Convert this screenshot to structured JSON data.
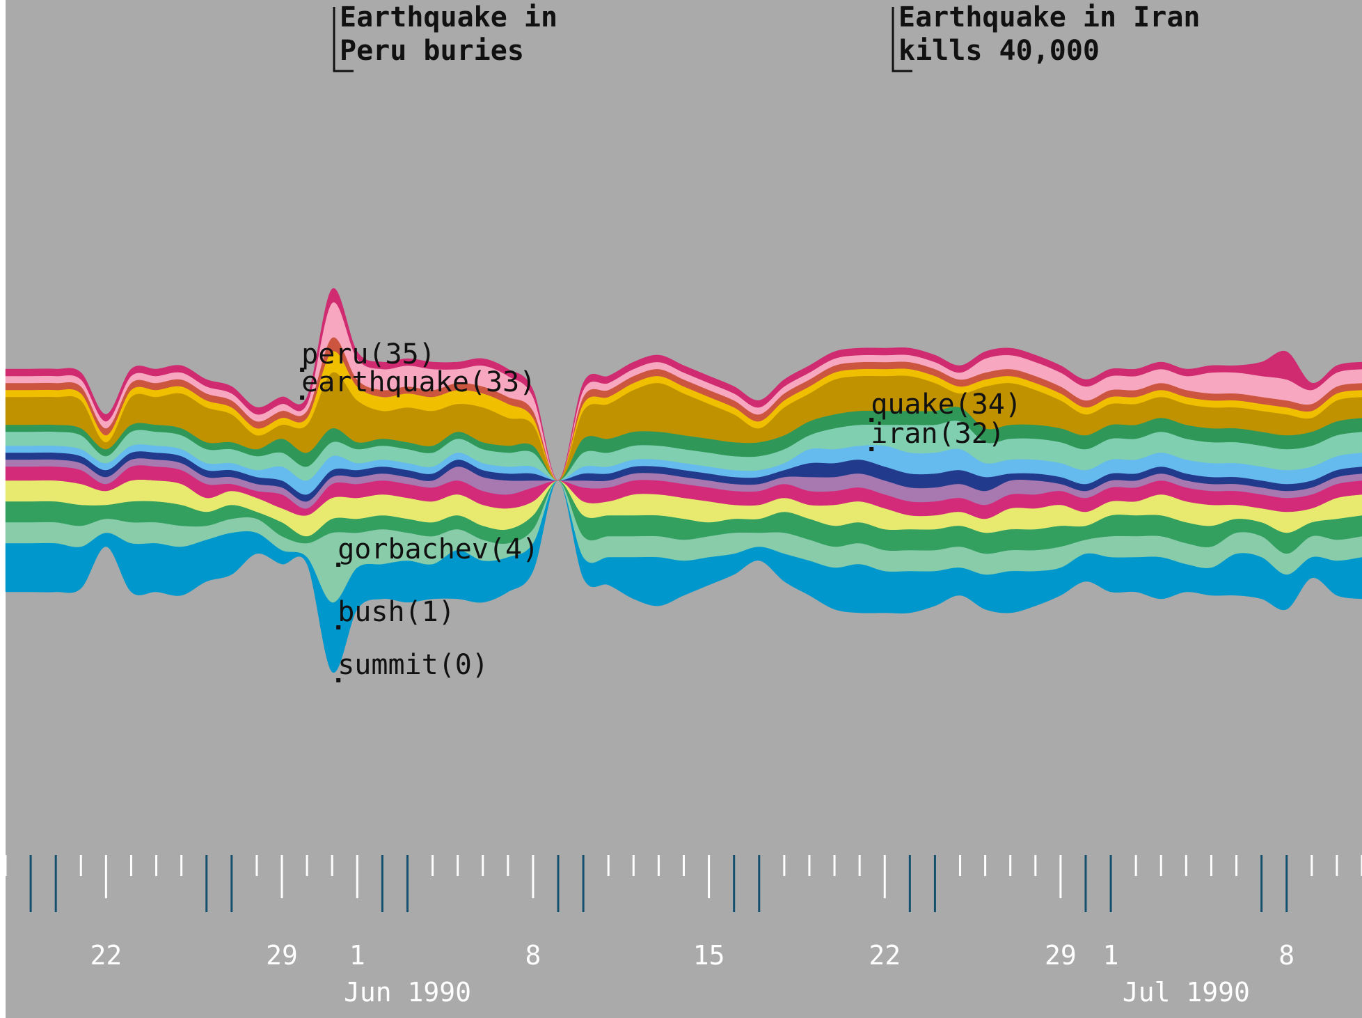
{
  "chart_data": {
    "type": "area",
    "subtype": "streamgraph",
    "title": "",
    "xlabel": "",
    "ylabel": "",
    "background": "#aaaaaa",
    "x": [
      "1990-05-18",
      "1990-05-19",
      "1990-05-20",
      "1990-05-21",
      "1990-05-22",
      "1990-05-23",
      "1990-05-24",
      "1990-05-25",
      "1990-05-26",
      "1990-05-27",
      "1990-05-28",
      "1990-05-29",
      "1990-05-30",
      "1990-05-31",
      "1990-06-01",
      "1990-06-02",
      "1990-06-03",
      "1990-06-04",
      "1990-06-05",
      "1990-06-06",
      "1990-06-07",
      "1990-06-08",
      "1990-06-09",
      "1990-06-10",
      "1990-06-11",
      "1990-06-12",
      "1990-06-13",
      "1990-06-14",
      "1990-06-15",
      "1990-06-16",
      "1990-06-17",
      "1990-06-18",
      "1990-06-19",
      "1990-06-20",
      "1990-06-21",
      "1990-06-22",
      "1990-06-23",
      "1990-06-24",
      "1990-06-25",
      "1990-06-26",
      "1990-06-27",
      "1990-06-28",
      "1990-06-29",
      "1990-06-30",
      "1990-07-01",
      "1990-07-02",
      "1990-07-03",
      "1990-07-04",
      "1990-07-05",
      "1990-07-06",
      "1990-07-07",
      "1990-07-08",
      "1990-07-09",
      "1990-07-10",
      "1990-07-11"
    ],
    "x_ticks": [
      {
        "date": "1990-05-22",
        "label": "22"
      },
      {
        "date": "1990-05-29",
        "label": "29"
      },
      {
        "date": "1990-06-01",
        "label": "1"
      },
      {
        "date": "1990-06-08",
        "label": "8"
      },
      {
        "date": "1990-06-15",
        "label": "15"
      },
      {
        "date": "1990-06-22",
        "label": "22"
      },
      {
        "date": "1990-06-29",
        "label": "29"
      },
      {
        "date": "1990-07-01",
        "label": "1"
      },
      {
        "date": "1990-07-08",
        "label": "8"
      }
    ],
    "month_labels": [
      {
        "date": "1990-06-03",
        "label": "Jun 1990"
      },
      {
        "date": "1990-07-04",
        "label": "Jul 1990"
      }
    ],
    "events": [
      {
        "date": "1990-06-01",
        "lines": [
          "Earthquake in",
          "Peru buries"
        ]
      },
      {
        "date": "1990-06-24",
        "lines": [
          "Earthquake in Iran",
          "kills 40,000"
        ]
      }
    ],
    "word_labels": [
      {
        "date": "1990-05-30",
        "text": "peru(35)"
      },
      {
        "date": "1990-05-30",
        "text": "earthquake(33)"
      },
      {
        "date": "1990-05-31",
        "text": "gorbachev(4)"
      },
      {
        "date": "1990-05-31",
        "text": "bush(1)"
      },
      {
        "date": "1990-05-31",
        "text": "summit(0)"
      },
      {
        "date": "1990-06-22",
        "text": "quake(34)"
      },
      {
        "date": "1990-06-22",
        "text": "iran(32)"
      }
    ],
    "series": [
      {
        "color": "#0098cc",
        "values": [
          7,
          7,
          7,
          6,
          2,
          7,
          7,
          7,
          6,
          6,
          3,
          2,
          1,
          10,
          6,
          5,
          6,
          5,
          7,
          6,
          5,
          4,
          0,
          3,
          4,
          6,
          7,
          5,
          4,
          3,
          2,
          4,
          5,
          6,
          7,
          6,
          6,
          5,
          4,
          5,
          6,
          5,
          4,
          4,
          5,
          5,
          6,
          4,
          4,
          6,
          6,
          5,
          3,
          5,
          6
        ]
      },
      {
        "color": "#88ccaa",
        "values": [
          3,
          3,
          3,
          3,
          2,
          3,
          3,
          3,
          2,
          2,
          2,
          2,
          2,
          10,
          5,
          5,
          4,
          4,
          3,
          3,
          2,
          2,
          0,
          3,
          3,
          3,
          3,
          3,
          3,
          3,
          2,
          3,
          3,
          3,
          3,
          3,
          3,
          3,
          3,
          3,
          3,
          3,
          3,
          2,
          3,
          3,
          3,
          3,
          3,
          3,
          3,
          3,
          3,
          3,
          3
        ]
      },
      {
        "color": "#33a060",
        "values": [
          3,
          3,
          3,
          3,
          2,
          3,
          3,
          3,
          2,
          2,
          1,
          2,
          1,
          2,
          2,
          2,
          2,
          2,
          2,
          2,
          2,
          2,
          0,
          3,
          3,
          3,
          3,
          3,
          2,
          2,
          2,
          3,
          3,
          3,
          3,
          3,
          3,
          3,
          3,
          3,
          3,
          3,
          3,
          2,
          3,
          3,
          3,
          3,
          3,
          2,
          2,
          3,
          2,
          3,
          3
        ]
      },
      {
        "color": "#e8ea70",
        "values": [
          3,
          3,
          3,
          3,
          2,
          3,
          3,
          3,
          2,
          2,
          2,
          2,
          3,
          3,
          3,
          3,
          3,
          3,
          3,
          3,
          3,
          2,
          0,
          2,
          2,
          3,
          3,
          3,
          3,
          2,
          2,
          2,
          2,
          3,
          3,
          3,
          2,
          2,
          2,
          2,
          3,
          3,
          3,
          2,
          2,
          2,
          3,
          3,
          3,
          2,
          2,
          3,
          2,
          3,
          3
        ]
      },
      {
        "color": "#d42a7a",
        "values": [
          2,
          2,
          2,
          2,
          1,
          2,
          2,
          2,
          2,
          1,
          1,
          2,
          1,
          2,
          2,
          2,
          2,
          2,
          2,
          2,
          2,
          2,
          0,
          2,
          2,
          2,
          2,
          2,
          2,
          2,
          2,
          2,
          2,
          2,
          2,
          2,
          2,
          2,
          2,
          2,
          2,
          2,
          2,
          2,
          2,
          2,
          2,
          2,
          2,
          2,
          2,
          2,
          2,
          2,
          2
        ]
      },
      {
        "color": "#a878b0",
        "values": [
          1,
          1,
          1,
          1,
          1,
          1,
          1,
          1,
          1,
          1,
          1,
          1,
          1,
          1,
          1,
          1,
          1,
          1,
          2,
          2,
          2,
          1,
          0,
          1,
          1,
          1,
          1,
          1,
          1,
          1,
          1,
          1,
          2,
          2,
          2,
          2,
          2,
          2,
          2,
          2,
          2,
          2,
          1,
          1,
          1,
          1,
          1,
          1,
          1,
          1,
          1,
          1,
          1,
          1,
          1
        ]
      },
      {
        "color": "#223a8c",
        "values": [
          1,
          1,
          1,
          1,
          1,
          1,
          1,
          1,
          1,
          1,
          1,
          1,
          1,
          1,
          1,
          1,
          1,
          1,
          1,
          1,
          1,
          1,
          0,
          1,
          1,
          1,
          1,
          1,
          1,
          1,
          1,
          1,
          2,
          2,
          2,
          2,
          2,
          2,
          2,
          2,
          1,
          1,
          1,
          1,
          1,
          1,
          1,
          1,
          1,
          1,
          1,
          1,
          1,
          1,
          1
        ]
      },
      {
        "color": "#66bbee",
        "values": [
          1,
          1,
          1,
          1,
          1,
          1,
          1,
          1,
          1,
          1,
          1,
          2,
          2,
          2,
          1,
          1,
          1,
          1,
          1,
          1,
          1,
          1,
          0,
          1,
          1,
          1,
          1,
          1,
          1,
          1,
          1,
          1,
          2,
          2,
          2,
          3,
          3,
          3,
          3,
          2,
          2,
          2,
          2,
          2,
          2,
          2,
          2,
          2,
          2,
          2,
          2,
          2,
          2,
          2,
          2
        ]
      },
      {
        "color": "#7fcfb0",
        "values": [
          2,
          2,
          2,
          2,
          1,
          2,
          2,
          2,
          2,
          2,
          2,
          2,
          2,
          2,
          2,
          2,
          2,
          2,
          2,
          2,
          2,
          2,
          0,
          2,
          2,
          2,
          2,
          2,
          2,
          2,
          2,
          2,
          2,
          3,
          3,
          3,
          4,
          4,
          4,
          3,
          3,
          3,
          3,
          3,
          3,
          3,
          3,
          3,
          3,
          3,
          3,
          3,
          3,
          3,
          3
        ]
      },
      {
        "color": "#2f9858",
        "values": [
          1,
          1,
          1,
          1,
          1,
          1,
          1,
          1,
          1,
          1,
          1,
          2,
          2,
          2,
          1,
          1,
          1,
          1,
          1,
          1,
          1,
          1,
          0,
          2,
          2,
          2,
          2,
          2,
          2,
          2,
          2,
          2,
          2,
          2,
          2,
          2,
          2,
          2,
          2,
          2,
          2,
          2,
          2,
          2,
          2,
          2,
          2,
          2,
          2,
          2,
          2,
          2,
          2,
          2,
          2
        ]
      },
      {
        "color": "#c09200",
        "values": [
          4,
          4,
          4,
          4,
          1,
          4,
          4,
          5,
          5,
          4,
          2,
          2,
          4,
          8,
          6,
          4,
          5,
          5,
          4,
          5,
          4,
          3,
          0,
          4,
          5,
          6,
          7,
          6,
          5,
          4,
          2,
          4,
          4,
          5,
          5,
          5,
          5,
          4,
          2,
          6,
          6,
          5,
          4,
          3,
          3,
          3,
          3,
          3,
          3,
          3,
          3,
          3,
          2,
          3,
          3
        ]
      },
      {
        "color": "#f0c000",
        "values": [
          1,
          1,
          1,
          1,
          1,
          1,
          1,
          1,
          1,
          1,
          1,
          1,
          1,
          3,
          2,
          2,
          2,
          2,
          2,
          2,
          2,
          1,
          0,
          1,
          1,
          1,
          1,
          1,
          1,
          1,
          1,
          1,
          1,
          1,
          1,
          1,
          1,
          1,
          1,
          1,
          1,
          1,
          1,
          1,
          1,
          1,
          1,
          1,
          1,
          1,
          1,
          1,
          1,
          1,
          1
        ]
      },
      {
        "color": "#cc5540",
        "values": [
          1,
          1,
          1,
          1,
          1,
          1,
          1,
          1,
          1,
          1,
          1,
          1,
          1,
          2,
          1,
          1,
          1,
          1,
          1,
          1,
          1,
          1,
          0,
          1,
          1,
          1,
          1,
          1,
          1,
          1,
          1,
          1,
          1,
          1,
          1,
          1,
          1,
          1,
          1,
          1,
          1,
          1,
          1,
          1,
          1,
          1,
          1,
          1,
          1,
          1,
          1,
          1,
          1,
          1,
          1
        ]
      },
      {
        "color": "#f7a8c0",
        "values": [
          1,
          1,
          1,
          1,
          1,
          1,
          1,
          1,
          1,
          1,
          1,
          1,
          1,
          5,
          3,
          3,
          3,
          3,
          2,
          3,
          3,
          2,
          0,
          1,
          1,
          1,
          1,
          1,
          1,
          1,
          1,
          1,
          1,
          1,
          1,
          1,
          1,
          1,
          1,
          2,
          2,
          2,
          2,
          2,
          2,
          2,
          2,
          2,
          3,
          3,
          3,
          3,
          2,
          2,
          2
        ]
      },
      {
        "color": "#d02a70",
        "values": [
          1,
          1,
          1,
          1,
          1,
          1,
          1,
          1,
          1,
          1,
          1,
          1,
          1,
          2,
          1,
          1,
          1,
          1,
          1,
          1,
          1,
          1,
          0,
          1,
          1,
          1,
          1,
          1,
          1,
          1,
          1,
          1,
          1,
          1,
          1,
          1,
          1,
          1,
          1,
          1,
          1,
          1,
          1,
          1,
          1,
          1,
          1,
          1,
          1,
          1,
          2,
          4,
          1,
          1,
          1
        ]
      }
    ]
  }
}
